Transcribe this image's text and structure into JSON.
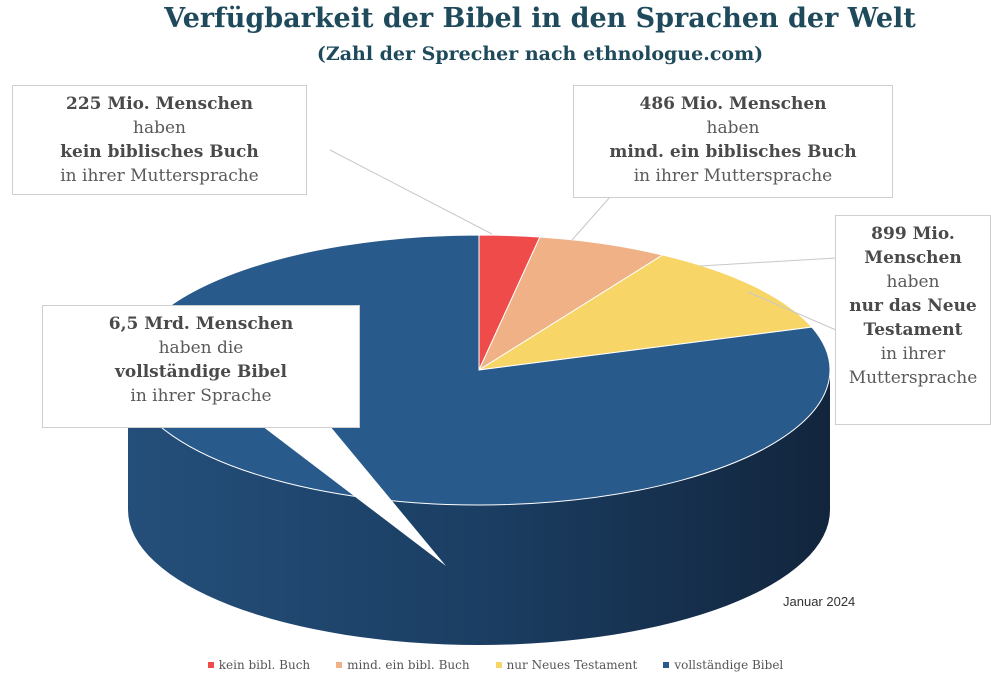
{
  "chart_data": {
    "type": "pie3d",
    "title": "Verfügbarkeit der Bibel in den Sprachen der Welt",
    "subtitle": "(Zahl der Sprecher nach ethnologue.com)",
    "series": [
      {
        "name": "kein bibl. Buch",
        "color": "#ef4b4b"
      },
      {
        "name": "mind. ein bibl. Buch",
        "color": "#efb185"
      },
      {
        "name": "nur Neues Testament",
        "color": "#f7d667"
      },
      {
        "name": "vollständige Bibel",
        "color": "#285a8b"
      }
    ],
    "values": [
      225,
      486,
      899,
      6500
    ],
    "value_labels": [
      "225 Mio. Menschen",
      "486 Mio. Menschen",
      "899 Mio. Menschen",
      "6,5 Mrd. Menschen"
    ],
    "callouts": [
      {
        "verb": "haben",
        "text": "kein biblisches Buch",
        "suffix": "in ihrer Muttersprache"
      },
      {
        "verb": "haben",
        "text": "mind. ein biblisches Buch",
        "suffix": "in ihrer Muttersprache"
      },
      {
        "verb": "haben",
        "text": "nur das Neue Testament",
        "suffix": "in ihrer Muttersprache"
      },
      {
        "verb": "haben die",
        "text": "vollständige Bibel",
        "suffix": "in ihrer Sprache"
      }
    ],
    "note": "Januar 2024",
    "legend": "bottom"
  }
}
